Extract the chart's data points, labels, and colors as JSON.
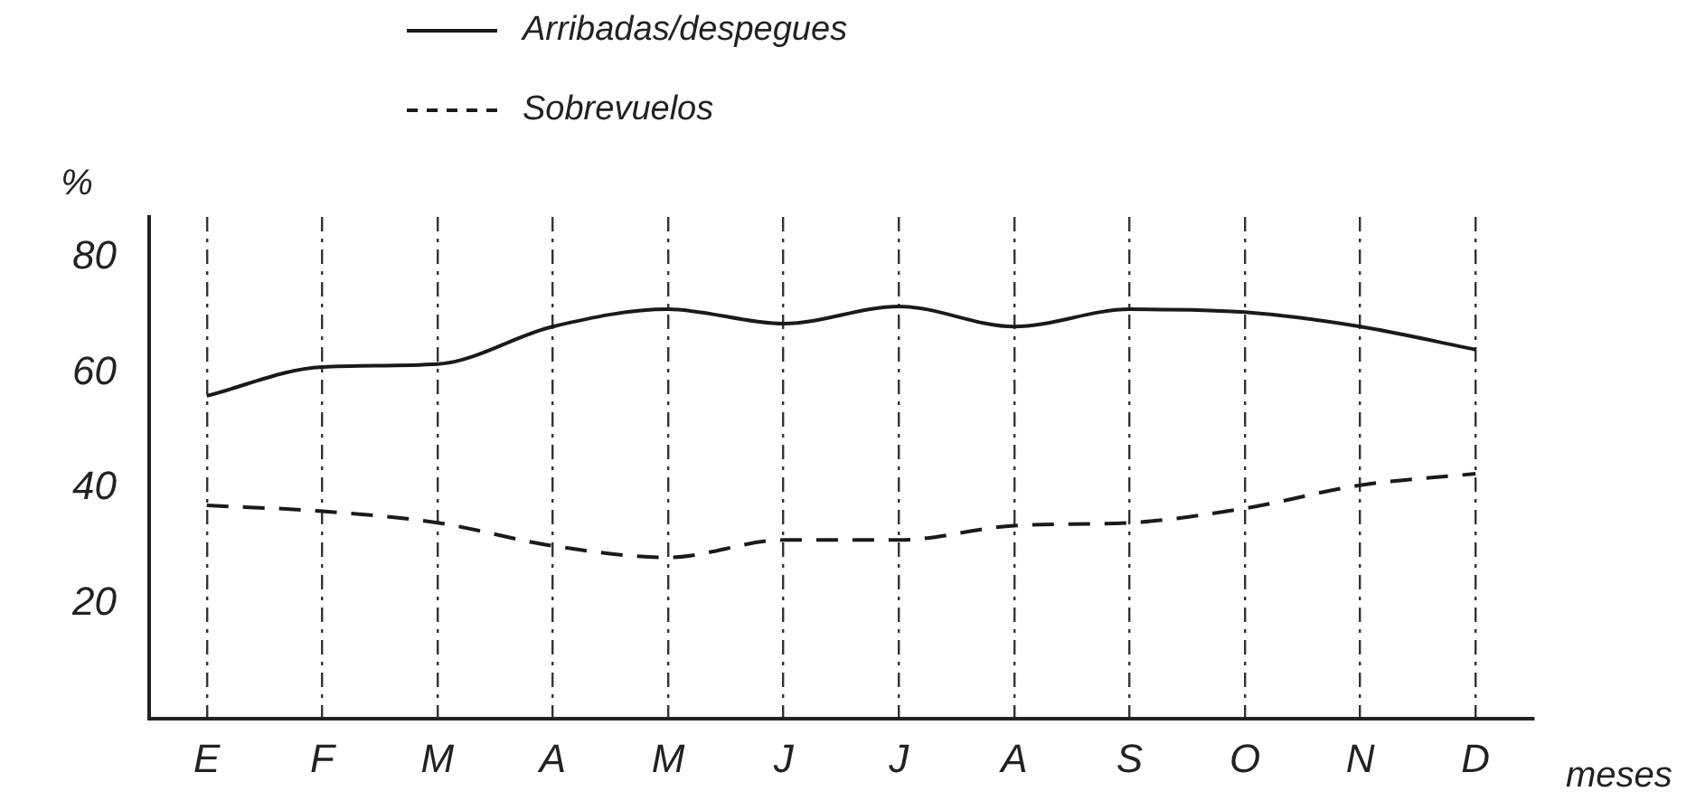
{
  "chart_data": {
    "type": "line",
    "xlabel": "meses",
    "ylabel": "%",
    "categories": [
      "E",
      "F",
      "M",
      "A",
      "M",
      "J",
      "J",
      "A",
      "S",
      "O",
      "N",
      "D"
    ],
    "series": [
      {
        "name": "Arribadas/despegues",
        "color": "#1a1a1a",
        "line_style": "solid",
        "values": [
          56,
          61,
          61.5,
          68,
          71,
          68.5,
          71.5,
          68,
          71,
          70.5,
          68,
          64
        ]
      },
      {
        "name": "Sobrevuelos",
        "color": "#1a1a1a",
        "line_style": "dashed",
        "values": [
          37,
          36,
          34,
          30,
          28,
          31,
          31,
          33.5,
          34,
          36.5,
          40.5,
          42.5
        ]
      }
    ],
    "ylim": [
      0,
      87
    ],
    "yticks": [
      20,
      40,
      60,
      80
    ],
    "grid": "x",
    "legend": "top",
    "marker": "none"
  }
}
